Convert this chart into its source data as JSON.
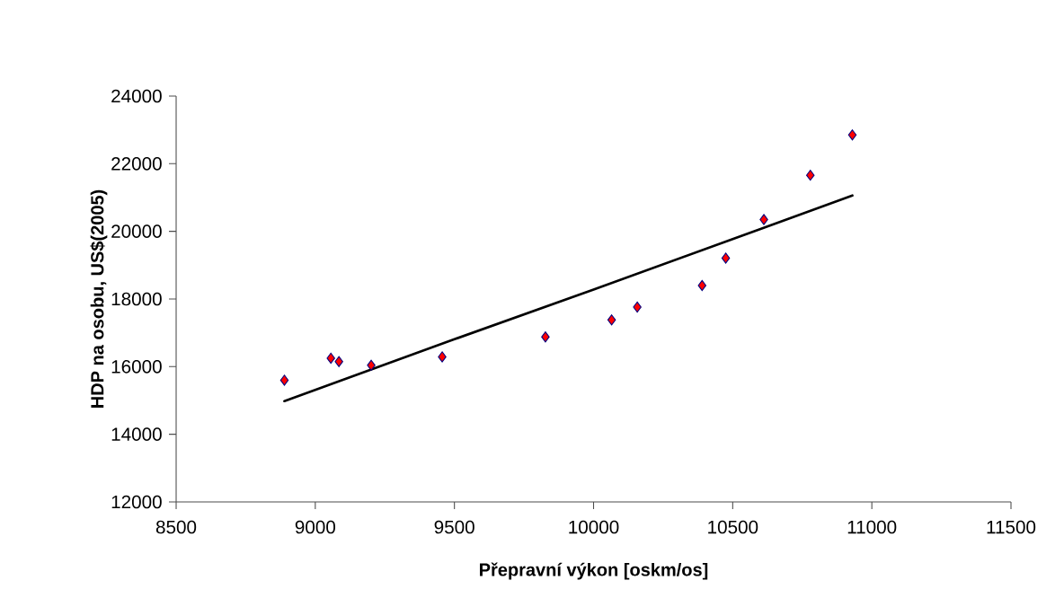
{
  "chart_data": {
    "type": "scatter",
    "xlabel": "Přepravní výkon [oskm/os]",
    "ylabel": "HDP na osobu, US$(2005)",
    "xlim": [
      8500,
      11500
    ],
    "xticks": [
      8500,
      9000,
      9500,
      10000,
      10500,
      11000,
      11500
    ],
    "ylim": [
      12000,
      24000
    ],
    "yticks": [
      12000,
      14000,
      16000,
      18000,
      20000,
      22000,
      24000
    ],
    "grid": false,
    "legend": false,
    "marker": "diamond",
    "series": [
      {
        "color": "#ff0000",
        "x": [
          8889,
          9056,
          9085,
          9201,
          9456,
          9827,
          10065,
          10157,
          10390,
          10475,
          10612,
          10779,
          10930
        ],
        "values": [
          15600,
          16250,
          16150,
          16040,
          16290,
          16880,
          17380,
          17760,
          18400,
          19210,
          20350,
          21660,
          22850
        ]
      },
      {
        "type": "line",
        "color": "#000000",
        "marker": "none",
        "x": [
          8889,
          9500,
          10000,
          10500,
          10930
        ],
        "values": [
          14980,
          16810,
          18280,
          19770,
          21060
        ]
      }
    ]
  }
}
